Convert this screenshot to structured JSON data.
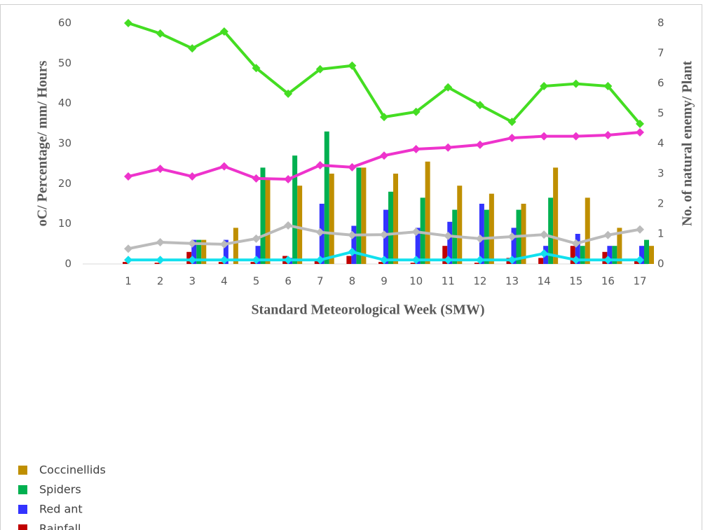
{
  "chart_data": {
    "type": "bar",
    "xlabel": "Standard Meteorological Week (SMW)",
    "ylabel": "oC/ Percentage/ mm/ Hours",
    "y2label": "No. of natural enemy/ Plant",
    "categories": [
      "1",
      "2",
      "3",
      "4",
      "5",
      "6",
      "7",
      "8",
      "9",
      "10",
      "11",
      "12",
      "13",
      "14",
      "15",
      "16",
      "17"
    ],
    "ylim": [
      0,
      60
    ],
    "yticks": [
      0,
      10,
      20,
      30,
      40,
      50,
      60
    ],
    "y2lim": [
      0,
      8
    ],
    "y2ticks": [
      0,
      1,
      2,
      3,
      4,
      5,
      6,
      7,
      8
    ],
    "legend": "bottom-left",
    "series": [
      {
        "name": "Coccinellids",
        "color": "#bf8f00",
        "type": "bar",
        "values": [
          0,
          0,
          6,
          9,
          21,
          19.5,
          22.5,
          24,
          22.5,
          25.5,
          19.5,
          17.5,
          15,
          24,
          16.5,
          9,
          4.5
        ]
      },
      {
        "name": "Spiders",
        "color": "#00b050",
        "type": "bar",
        "values": [
          0,
          0,
          6,
          0,
          24,
          27,
          33,
          24,
          18,
          16.5,
          13.5,
          13.5,
          13.5,
          16.5,
          4.5,
          4.5,
          6
        ]
      },
      {
        "name": "Red ant",
        "color": "#3333ff",
        "type": "bar",
        "values": [
          0,
          0,
          6,
          6,
          4.5,
          1.5,
          15,
          9.5,
          13.5,
          9,
          10.5,
          15,
          9,
          4.5,
          7.5,
          4.5,
          4.5
        ]
      },
      {
        "name": "Rainfall",
        "color": "#c00000",
        "type": "bar",
        "values": [
          0.5,
          0.3,
          3,
          0.5,
          0.5,
          2,
          1,
          2,
          0.5,
          0.3,
          4.5,
          0.3,
          1.5,
          1.5,
          4.5,
          3,
          1
        ]
      },
      {
        "color": "#44dd22",
        "type": "line",
        "values": [
          60,
          57.4,
          53.7,
          57.9,
          48.8,
          42.4,
          48.5,
          49.4,
          36.6,
          37.9,
          44,
          39.6,
          35.4,
          44.3,
          44.9,
          44.3,
          34.9
        ]
      },
      {
        "color": "#ee33cc",
        "type": "line",
        "values": [
          21.8,
          23.7,
          21.8,
          24.3,
          21.3,
          21.1,
          24.6,
          24.1,
          27,
          28.6,
          29,
          29.7,
          31.4,
          31.8,
          31.8,
          32.1,
          32.8
        ]
      },
      {
        "color": "#bbbbbb",
        "type": "line",
        "values": [
          3.8,
          5.4,
          5.1,
          4.9,
          6.3,
          9.6,
          7.9,
          7.2,
          7.3,
          8,
          7,
          6.3,
          6.8,
          7.3,
          5.1,
          7.2,
          8.6
        ]
      },
      {
        "color": "#11e0ee",
        "type": "line",
        "values": [
          1,
          1,
          1,
          1,
          1,
          1,
          1,
          3,
          1,
          1,
          1,
          1,
          1,
          2.6,
          1,
          1,
          1
        ]
      }
    ]
  }
}
